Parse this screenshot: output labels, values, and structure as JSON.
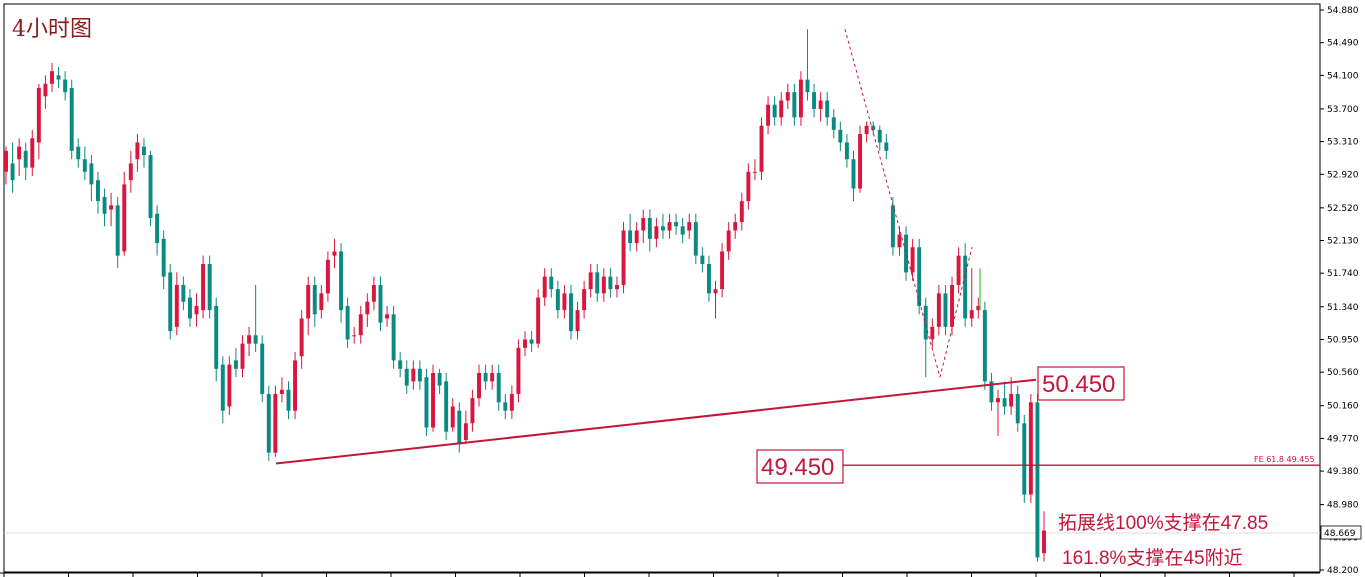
{
  "chart_data": {
    "type": "candlestick",
    "title": "4小时图",
    "yticks": [
      "54.880",
      "54.490",
      "54.100",
      "53.700",
      "53.310",
      "52.920",
      "52.520",
      "52.130",
      "51.740",
      "51.340",
      "50.950",
      "50.560",
      "50.160",
      "49.770",
      "49.380",
      "48.980",
      "48.590",
      "48.200"
    ],
    "ylim": [
      48.2,
      54.88
    ],
    "current_price": "48.669",
    "levels": [
      {
        "label": "50.450",
        "value": 50.45
      },
      {
        "label": "49.450",
        "value": 49.45
      }
    ],
    "fe_label": "FE 61.8   49.455",
    "annotations": [
      "拓展线100%支撑在47.85",
      "161.8%支撑在45附近"
    ],
    "trendline": {
      "start_value": 49.47,
      "end_value": 50.47
    },
    "fib_points": [
      54.65,
      50.5,
      52.05
    ],
    "candles": [
      [
        52.95,
        53.2,
        52.8,
        53.25
      ],
      [
        53.05,
        52.85,
        52.7,
        53.3
      ],
      [
        53.1,
        53.25,
        52.9,
        53.35
      ],
      [
        53.2,
        53.0,
        52.85,
        53.3
      ],
      [
        53.0,
        53.35,
        52.9,
        53.45
      ],
      [
        53.3,
        53.95,
        53.1,
        54.0
      ],
      [
        53.85,
        54.0,
        53.7,
        54.1
      ],
      [
        54.0,
        54.15,
        53.9,
        54.25
      ],
      [
        54.1,
        54.05,
        53.95,
        54.2
      ],
      [
        54.05,
        53.9,
        53.8,
        54.15
      ],
      [
        53.95,
        53.2,
        53.1,
        54.05
      ],
      [
        53.25,
        53.1,
        53.0,
        53.35
      ],
      [
        53.1,
        52.95,
        52.85,
        53.25
      ],
      [
        53.05,
        52.8,
        52.6,
        53.15
      ],
      [
        52.85,
        52.6,
        52.45,
        52.95
      ],
      [
        52.65,
        52.45,
        52.3,
        52.75
      ],
      [
        52.5,
        52.55,
        52.3,
        52.7
      ],
      [
        52.55,
        51.95,
        51.8,
        52.65
      ],
      [
        52.0,
        52.8,
        51.95,
        52.95
      ],
      [
        52.85,
        53.05,
        52.7,
        53.2
      ],
      [
        53.1,
        53.3,
        52.95,
        53.4
      ],
      [
        53.25,
        53.15,
        53.0,
        53.35
      ],
      [
        53.15,
        52.4,
        52.3,
        53.2
      ],
      [
        52.45,
        52.1,
        51.95,
        52.55
      ],
      [
        52.15,
        51.7,
        51.55,
        52.25
      ],
      [
        51.75,
        51.05,
        50.95,
        51.85
      ],
      [
        51.1,
        51.6,
        51.0,
        51.75
      ],
      [
        51.6,
        51.4,
        51.3,
        51.7
      ],
      [
        51.45,
        51.2,
        51.1,
        51.55
      ],
      [
        51.25,
        51.35,
        51.1,
        51.5
      ],
      [
        51.3,
        51.85,
        51.2,
        51.95
      ],
      [
        51.85,
        51.3,
        51.2,
        51.95
      ],
      [
        51.35,
        50.6,
        50.45,
        51.45
      ],
      [
        50.65,
        50.1,
        49.95,
        50.75
      ],
      [
        50.15,
        50.65,
        50.05,
        50.75
      ],
      [
        50.7,
        50.6,
        50.5,
        50.85
      ],
      [
        50.6,
        50.9,
        50.5,
        51.0
      ],
      [
        50.9,
        51.0,
        50.75,
        51.1
      ],
      [
        51.0,
        50.9,
        50.8,
        51.6
      ],
      [
        50.9,
        50.3,
        50.2,
        51.0
      ],
      [
        50.3,
        49.6,
        49.5,
        50.4
      ],
      [
        49.6,
        50.3,
        49.55,
        50.4
      ],
      [
        50.3,
        50.35,
        50.2,
        50.5
      ],
      [
        50.35,
        50.1,
        50.0,
        50.45
      ],
      [
        50.1,
        50.7,
        50.0,
        50.8
      ],
      [
        50.75,
        51.2,
        50.6,
        51.3
      ],
      [
        51.2,
        51.6,
        51.0,
        51.7
      ],
      [
        51.6,
        51.25,
        51.1,
        51.7
      ],
      [
        51.3,
        51.5,
        51.2,
        51.6
      ],
      [
        51.5,
        51.9,
        51.4,
        52.0
      ],
      [
        51.95,
        52.0,
        51.8,
        52.15
      ],
      [
        52.0,
        51.3,
        51.15,
        52.1
      ],
      [
        51.35,
        50.95,
        50.85,
        51.45
      ],
      [
        51.0,
        51.0,
        50.9,
        51.1
      ],
      [
        51.0,
        51.25,
        50.9,
        51.35
      ],
      [
        51.25,
        51.4,
        51.1,
        51.5
      ],
      [
        51.4,
        51.6,
        51.3,
        51.7
      ],
      [
        51.6,
        51.15,
        51.05,
        51.7
      ],
      [
        51.2,
        51.25,
        51.1,
        51.35
      ],
      [
        51.25,
        50.7,
        50.6,
        51.35
      ],
      [
        50.7,
        50.6,
        50.5,
        50.8
      ],
      [
        50.6,
        50.4,
        50.3,
        50.7
      ],
      [
        50.45,
        50.6,
        50.35,
        50.7
      ],
      [
        50.6,
        50.45,
        50.35,
        50.7
      ],
      [
        50.5,
        49.9,
        49.8,
        50.6
      ],
      [
        49.9,
        50.55,
        49.85,
        50.65
      ],
      [
        50.55,
        50.4,
        50.3,
        50.6
      ],
      [
        50.45,
        49.85,
        49.75,
        50.55
      ],
      [
        49.9,
        50.15,
        49.85,
        50.25
      ],
      [
        50.1,
        49.7,
        49.6,
        50.2
      ],
      [
        49.75,
        49.95,
        49.7,
        50.1
      ],
      [
        49.95,
        50.25,
        49.85,
        50.35
      ],
      [
        50.25,
        50.55,
        50.15,
        50.65
      ],
      [
        50.55,
        50.45,
        50.35,
        50.65
      ],
      [
        50.45,
        50.55,
        50.35,
        50.65
      ],
      [
        50.55,
        50.2,
        50.1,
        50.65
      ],
      [
        50.2,
        50.1,
        50.0,
        50.3
      ],
      [
        50.1,
        50.3,
        50.0,
        50.4
      ],
      [
        50.3,
        50.85,
        50.2,
        50.95
      ],
      [
        50.85,
        50.95,
        50.75,
        51.05
      ],
      [
        50.95,
        50.9,
        50.8,
        51.05
      ],
      [
        50.9,
        51.45,
        50.85,
        51.55
      ],
      [
        51.45,
        51.7,
        51.35,
        51.8
      ],
      [
        51.7,
        51.55,
        51.45,
        51.8
      ],
      [
        51.55,
        51.3,
        51.2,
        51.65
      ],
      [
        51.3,
        51.5,
        51.2,
        51.6
      ],
      [
        51.5,
        51.05,
        50.95,
        51.6
      ],
      [
        51.05,
        51.3,
        50.95,
        51.4
      ],
      [
        51.3,
        51.55,
        51.2,
        51.65
      ],
      [
        51.55,
        51.75,
        51.45,
        51.85
      ],
      [
        51.75,
        51.5,
        51.4,
        51.85
      ],
      [
        51.5,
        51.7,
        51.4,
        51.8
      ],
      [
        51.7,
        51.55,
        51.45,
        51.8
      ],
      [
        51.55,
        51.6,
        51.45,
        51.7
      ],
      [
        51.6,
        52.25,
        51.5,
        52.35
      ],
      [
        52.25,
        52.1,
        52.0,
        52.45
      ],
      [
        52.1,
        52.25,
        52.0,
        52.35
      ],
      [
        52.25,
        52.4,
        52.1,
        52.5
      ],
      [
        52.4,
        52.15,
        52.0,
        52.5
      ],
      [
        52.15,
        52.3,
        52.05,
        52.4
      ],
      [
        52.3,
        52.25,
        52.15,
        52.45
      ],
      [
        52.25,
        52.35,
        52.15,
        52.45
      ],
      [
        52.35,
        52.3,
        52.2,
        52.45
      ],
      [
        52.3,
        52.2,
        52.1,
        52.4
      ],
      [
        52.25,
        52.35,
        52.15,
        52.45
      ],
      [
        52.35,
        51.95,
        51.85,
        52.45
      ],
      [
        51.95,
        51.85,
        51.75,
        52.05
      ],
      [
        51.85,
        51.5,
        51.4,
        51.95
      ],
      [
        51.5,
        51.55,
        51.2,
        51.65
      ],
      [
        51.55,
        52.0,
        51.45,
        52.1
      ],
      [
        52.0,
        52.25,
        51.9,
        52.35
      ],
      [
        52.25,
        52.35,
        52.15,
        52.45
      ],
      [
        52.35,
        52.6,
        52.25,
        52.7
      ],
      [
        52.6,
        52.95,
        52.5,
        53.05
      ],
      [
        52.95,
        52.95,
        52.85,
        53.1
      ],
      [
        52.95,
        53.5,
        52.85,
        53.6
      ],
      [
        53.5,
        53.75,
        53.4,
        53.85
      ],
      [
        53.75,
        53.6,
        53.5,
        53.85
      ],
      [
        53.6,
        53.8,
        53.5,
        53.9
      ],
      [
        53.8,
        53.9,
        53.7,
        54.0
      ],
      [
        53.9,
        53.6,
        53.5,
        54.0
      ],
      [
        53.6,
        54.05,
        53.5,
        54.15
      ],
      [
        54.05,
        53.9,
        53.8,
        54.65
      ],
      [
        53.9,
        53.7,
        53.6,
        54.0
      ],
      [
        53.7,
        53.8,
        53.55,
        53.9
      ],
      [
        53.8,
        53.6,
        53.5,
        53.9
      ],
      [
        53.6,
        53.45,
        53.35,
        53.7
      ],
      [
        53.45,
        53.3,
        53.2,
        53.55
      ],
      [
        53.3,
        53.1,
        53.0,
        53.4
      ],
      [
        53.1,
        52.75,
        52.6,
        53.2
      ],
      [
        52.75,
        53.4,
        52.7,
        53.5
      ],
      [
        53.4,
        53.5,
        53.3,
        53.55
      ],
      [
        53.5,
        53.45,
        53.4,
        53.55
      ],
      [
        53.45,
        53.3,
        53.2,
        53.5
      ],
      [
        53.3,
        53.2,
        53.1,
        53.4
      ],
      [
        52.55,
        52.05,
        51.95,
        52.65
      ],
      [
        52.05,
        52.2,
        51.95,
        52.3
      ],
      [
        52.2,
        51.75,
        51.65,
        52.3
      ],
      [
        51.75,
        52.05,
        51.65,
        52.15
      ],
      [
        52.05,
        51.35,
        51.25,
        52.15
      ],
      [
        51.35,
        50.95,
        50.5,
        51.45
      ],
      [
        50.95,
        51.1,
        50.85,
        51.2
      ],
      [
        51.1,
        51.5,
        51.0,
        51.6
      ],
      [
        51.5,
        51.1,
        51.0,
        51.6
      ],
      [
        51.1,
        51.6,
        51.0,
        51.7
      ],
      [
        51.6,
        51.95,
        51.5,
        52.05
      ],
      [
        51.95,
        51.2,
        51.1,
        52.1
      ],
      [
        51.2,
        51.3,
        51.1,
        51.8
      ],
      [
        51.3,
        51.35,
        51.2,
        51.45
      ],
      [
        51.3,
        50.45,
        50.35,
        51.4
      ],
      [
        50.45,
        50.2,
        50.1,
        50.55
      ],
      [
        50.2,
        50.25,
        49.8,
        50.35
      ],
      [
        50.25,
        50.15,
        50.05,
        50.45
      ],
      [
        50.15,
        50.3,
        50.05,
        50.5
      ],
      [
        50.3,
        49.95,
        49.85,
        50.4
      ],
      [
        49.95,
        49.1,
        49.0,
        50.05
      ],
      [
        49.1,
        50.2,
        49.0,
        50.3
      ],
      [
        50.2,
        48.35,
        48.3,
        50.3
      ],
      [
        48.4,
        48.67,
        48.3,
        48.9
      ]
    ]
  }
}
